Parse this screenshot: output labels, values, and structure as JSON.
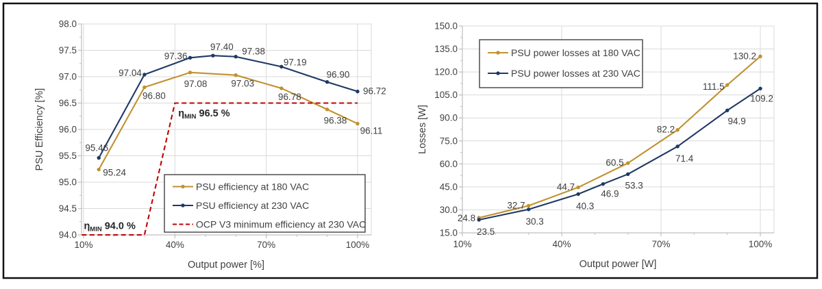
{
  "colors": {
    "series_180_vac": "#C0912E",
    "series_230_vac": "#1F3864",
    "ocp_limit": "#C00000",
    "gridline": "#D9D9D9",
    "axis_line": "#BFBFBF",
    "tick_text": "#404040",
    "label_text": "#3F3F3F",
    "legend_border": "#404040",
    "frame_border": "#111111"
  },
  "chart_data": [
    {
      "id": "psu-efficiency",
      "type": "line",
      "title": "",
      "xlabel": "Output power [%]",
      "ylabel": "PSU Efficiency [%]",
      "ylim": [
        94.0,
        98.0
      ],
      "ytick_step": 0.5,
      "ytick_labels": [
        "98.0",
        "97.5",
        "97.0",
        "96.5",
        "96.0",
        "95.5",
        "95.0",
        "94.5",
        "94.0"
      ],
      "xtick_values": [
        10,
        40,
        70,
        100
      ],
      "xtick_labels": [
        "10%",
        "40%",
        "70%",
        "100%"
      ],
      "grid": true,
      "legend_position": "inside-bottom-center",
      "series": [
        {
          "name": "PSU efficiency at 180 VAC",
          "color_key": "series_180_vac",
          "x": [
            15,
            30,
            45,
            60,
            75,
            90,
            100
          ],
          "y": [
            95.24,
            96.8,
            97.08,
            97.03,
            96.78,
            96.38,
            96.11
          ],
          "point_labels": [
            "95.24",
            "96.80",
            "97.08",
            "97.03",
            "96.78",
            "96.38",
            "96.11"
          ],
          "label_dx": [
            6,
            14,
            8,
            10,
            12,
            12,
            20
          ],
          "label_dy": [
            9,
            17,
            21,
            17,
            17,
            21,
            15
          ],
          "label_anchor": [
            "start",
            "middle",
            "middle",
            "middle",
            "middle",
            "middle",
            "middle"
          ]
        },
        {
          "name": "PSU efficiency at 230 VAC",
          "color_key": "series_230_vac",
          "x": [
            15,
            30,
            45,
            52.5,
            60,
            75,
            90,
            100
          ],
          "y": [
            95.46,
            97.04,
            97.36,
            97.4,
            97.38,
            97.19,
            96.9,
            96.72
          ],
          "point_labels": [
            "95.46",
            "97.04",
            "97.36",
            "97.40",
            "97.38",
            "97.19",
            "96.90",
            "96.72"
          ],
          "label_dx": [
            -3,
            -4,
            -4,
            13,
            9,
            3,
            16,
            8
          ],
          "label_dy": [
            -10,
            2,
            2,
            -8,
            -3,
            -2,
            -6,
            4
          ],
          "label_anchor": [
            "middle",
            "end",
            "end",
            "middle",
            "start",
            "start",
            "middle",
            "start"
          ]
        },
        {
          "name": "OCP V3 minimum efficiency at 230 VAC",
          "color_key": "ocp_limit",
          "dashed": true,
          "markers": false,
          "x": [
            9.4,
            30,
            40,
            100
          ],
          "y": [
            94.0,
            94.0,
            96.5,
            96.5
          ]
        }
      ],
      "annotations": [
        {
          "prefix": "η",
          "sub": "MIN",
          "rest": " 94.0 %",
          "x": 10.1,
          "y": 94.11
        },
        {
          "prefix": "η",
          "sub": "MIN",
          "rest": " 96.5 %",
          "x": 41.1,
          "y": 96.25
        }
      ]
    },
    {
      "id": "psu-losses",
      "type": "line",
      "title": "",
      "xlabel": "Output power [W]",
      "ylabel": "Losses [W]",
      "ylim": [
        15.0,
        150.0
      ],
      "ytick_step": 15,
      "ytick_labels": [
        "150.0",
        "135.0",
        "120.0",
        "105.0",
        "90.0",
        "75.0",
        "60.0",
        "45.0",
        "30.0",
        "15.0"
      ],
      "xtick_values": [
        10,
        40,
        70,
        100
      ],
      "xtick_labels": [
        "10%",
        "40%",
        "70%",
        "100%"
      ],
      "grid": true,
      "legend_position": "inside-top-left",
      "series": [
        {
          "name": "PSU power losses at 180 VAC",
          "color_key": "series_180_vac",
          "x": [
            15,
            30,
            45,
            60,
            75,
            90,
            100
          ],
          "y": [
            24.8,
            32.7,
            44.7,
            60.5,
            82.2,
            111.5,
            130.2
          ],
          "point_labels": [
            "24.8",
            "32.7",
            "44.7",
            "60.5",
            "82.2",
            "111.5",
            "130.2"
          ],
          "label_dx": [
            -5,
            -5,
            -5,
            -6,
            -4,
            -4,
            -6
          ],
          "label_dy": [
            5,
            4,
            4,
            4,
            4,
            7,
            4
          ],
          "label_anchor": [
            "end",
            "end",
            "end",
            "end",
            "end",
            "end",
            "end"
          ]
        },
        {
          "name": "PSU power losses at 230 VAC",
          "color_key": "series_230_vac",
          "x": [
            15,
            30,
            45,
            52.5,
            60,
            75,
            90,
            100
          ],
          "y": [
            23.5,
            30.3,
            40.3,
            46.9,
            53.3,
            71.4,
            94.9,
            109.2
          ],
          "point_labels": [
            "23.5",
            "30.3",
            "40.3",
            "46.9",
            "53.3",
            "71.4",
            "94.9",
            "109.2"
          ],
          "label_dx": [
            10,
            9,
            10,
            10,
            9,
            10,
            14,
            2
          ],
          "label_dy": [
            22,
            22,
            22,
            19,
            21,
            22,
            20,
            19
          ],
          "label_anchor": [
            "middle",
            "middle",
            "middle",
            "middle",
            "middle",
            "middle",
            "middle",
            "middle"
          ]
        }
      ],
      "annotations": []
    }
  ]
}
